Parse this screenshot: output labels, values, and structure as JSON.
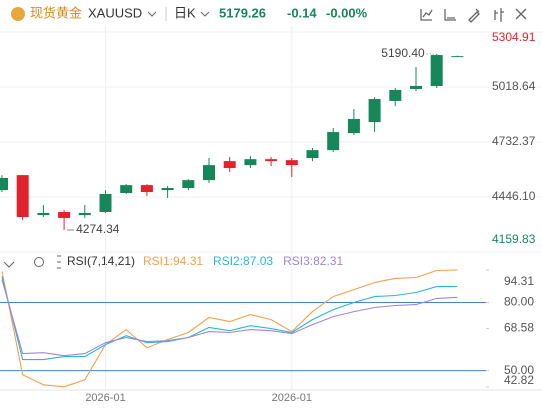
{
  "header": {
    "name": "现货黄金",
    "symbol": "XAUUSD",
    "period": "日K",
    "price": "5179.26",
    "change": "-0.14",
    "change_pct": "-0.00%"
  },
  "chart_data": [
    {
      "type": "candlestick",
      "categories": [
        null,
        null,
        null,
        null,
        null,
        "2026-01",
        null,
        null,
        null,
        null,
        null,
        null,
        null,
        null,
        "2026-01",
        null,
        null,
        null,
        null,
        null,
        null,
        null,
        null
      ],
      "open": [
        4482,
        4560,
        4352,
        4368,
        4352,
        4368,
        4467,
        4508,
        4482,
        4493,
        4534,
        4633,
        4612,
        4643,
        4638,
        4649,
        4690,
        4779,
        4836,
        4946,
        5008,
        5024,
        5178
      ],
      "high": [
        4560,
        4560,
        4404,
        4378,
        4404,
        4482,
        4513,
        4513,
        4503,
        4539,
        4649,
        4654,
        4659,
        4654,
        4649,
        4701,
        4805,
        4904,
        4966,
        5013,
        5123,
        5190.4,
        5182
      ],
      "low": [
        4472,
        4326,
        4342,
        4274.34,
        4337,
        4363,
        4462,
        4452,
        4441,
        4482,
        4519,
        4576,
        4597,
        4607,
        4550,
        4633,
        4680,
        4768,
        4784,
        4920,
        4998,
        5013,
        5175
      ],
      "close": [
        4545,
        4342,
        4363,
        4337,
        4363,
        4462,
        4508,
        4472,
        4493,
        4534,
        4612,
        4597,
        4643,
        4633,
        4612,
        4690,
        4784,
        4852,
        4956,
        5003,
        5024,
        5185,
        5179.26
      ],
      "up_color": "#16875b",
      "down_color": "#e3232c",
      "annotations": [
        "5190.40",
        "4274.34"
      ],
      "ylim": [
        4159.83,
        5304.91
      ],
      "yticks": [
        5304.91,
        5018.64,
        4732.37,
        {
          "value": 4446.1,
          "label": "4446.10"
        },
        4159.83
      ]
    },
    {
      "type": "line",
      "title": "RSI(7,14,21)",
      "series": [
        {
          "name": "RSI1:94.31",
          "color": "#f3a04a",
          "values": [
            93.7,
            48.2,
            43.8,
            42.9,
            46.0,
            61.5,
            68.1,
            60.1,
            63.7,
            66.8,
            73.4,
            71.6,
            74.7,
            72.5,
            67.2,
            76.0,
            82.6,
            85.7,
            88.8,
            90.6,
            91.0,
            94.1,
            94.31
          ]
        },
        {
          "name": "RSI2:87.03",
          "color": "#2cb6d4",
          "values": [
            91.5,
            54.9,
            54.9,
            56.2,
            56.2,
            61.5,
            65.4,
            62.3,
            62.8,
            64.6,
            69.0,
            67.6,
            69.8,
            68.5,
            66.8,
            72.5,
            76.9,
            80.0,
            82.6,
            83.1,
            84.4,
            87.0,
            87.03
          ]
        },
        {
          "name": "RSI3:82.31",
          "color": "#9f86d6",
          "values": [
            90.1,
            57.5,
            57.9,
            56.6,
            57.5,
            62.3,
            64.6,
            62.8,
            63.2,
            64.6,
            67.2,
            66.8,
            68.1,
            67.6,
            66.3,
            70.3,
            73.8,
            76.0,
            77.8,
            78.7,
            79.1,
            81.8,
            82.31
          ]
        }
      ],
      "hlines": [
        80,
        50
      ],
      "ylim": [
        42.82,
        94.31
      ],
      "yticks": [
        94.31,
        {
          "value": 80,
          "label": "80.00"
        },
        68.58,
        {
          "value": 50,
          "label": "50.00"
        },
        42.82
      ]
    }
  ]
}
